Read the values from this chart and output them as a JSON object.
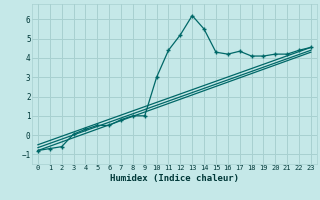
{
  "xlabel": "Humidex (Indice chaleur)",
  "bg_color": "#c5e8e8",
  "grid_color": "#a8d0d0",
  "line_color": "#006868",
  "xlim": [
    -0.5,
    23.5
  ],
  "ylim": [
    -1.5,
    6.8
  ],
  "yticks": [
    -1,
    0,
    1,
    2,
    3,
    4,
    5,
    6
  ],
  "xticks": [
    0,
    1,
    2,
    3,
    4,
    5,
    6,
    7,
    8,
    9,
    10,
    11,
    12,
    13,
    14,
    15,
    16,
    17,
    18,
    19,
    20,
    21,
    22,
    23
  ],
  "main_x": [
    0,
    1,
    2,
    3,
    4,
    5,
    6,
    7,
    8,
    9,
    10,
    11,
    12,
    13,
    14,
    15,
    16,
    17,
    18,
    19,
    20,
    21,
    22,
    23
  ],
  "main_y": [
    -0.8,
    -0.7,
    -0.6,
    0.05,
    0.3,
    0.5,
    0.5,
    0.8,
    1.0,
    1.0,
    3.0,
    4.4,
    5.2,
    6.2,
    5.5,
    4.3,
    4.2,
    4.35,
    4.1,
    4.1,
    4.2,
    4.2,
    4.4,
    4.55
  ],
  "ref_lines": [
    {
      "x": [
        0,
        23
      ],
      "y": [
        -0.8,
        4.3
      ]
    },
    {
      "x": [
        0,
        23
      ],
      "y": [
        -0.65,
        4.4
      ]
    },
    {
      "x": [
        0,
        23
      ],
      "y": [
        -0.5,
        4.55
      ]
    }
  ]
}
